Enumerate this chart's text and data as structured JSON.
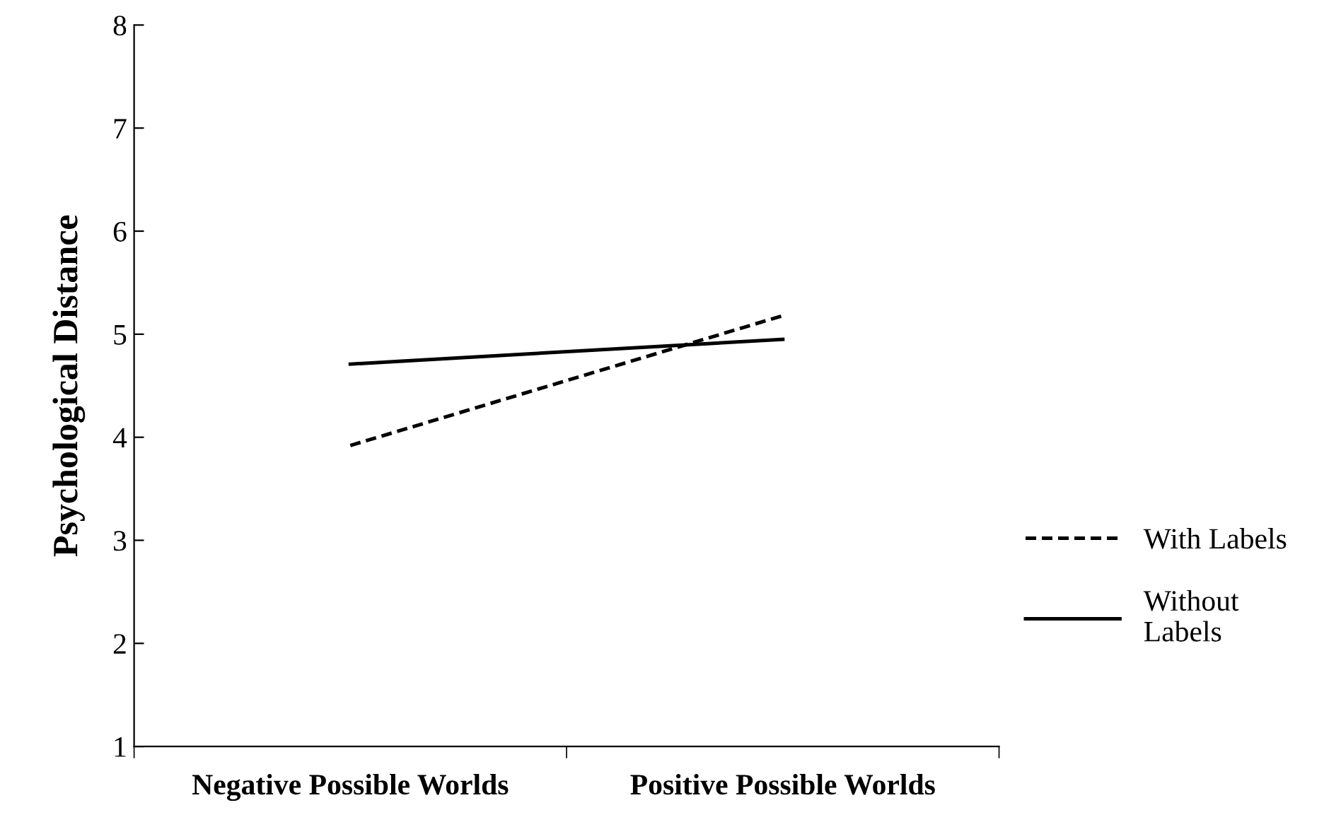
{
  "chart_data": {
    "type": "line",
    "ylabel": "Psychological Distance",
    "categories": [
      "Negative Possible Worlds",
      "Positive Possible Worlds"
    ],
    "series": [
      {
        "name": "With Labels",
        "color": "#000000",
        "line_style": "dashed",
        "values": [
          3.92,
          5.18
        ]
      },
      {
        "name": "Without Labels",
        "color": "#000000",
        "line_style": "solid",
        "values": [
          4.71,
          4.95
        ]
      }
    ],
    "ylim": [
      1,
      8
    ],
    "yticks": [
      1,
      2,
      3,
      4,
      5,
      6,
      7,
      8
    ],
    "grid": false,
    "legend": "right",
    "marker": "none"
  }
}
